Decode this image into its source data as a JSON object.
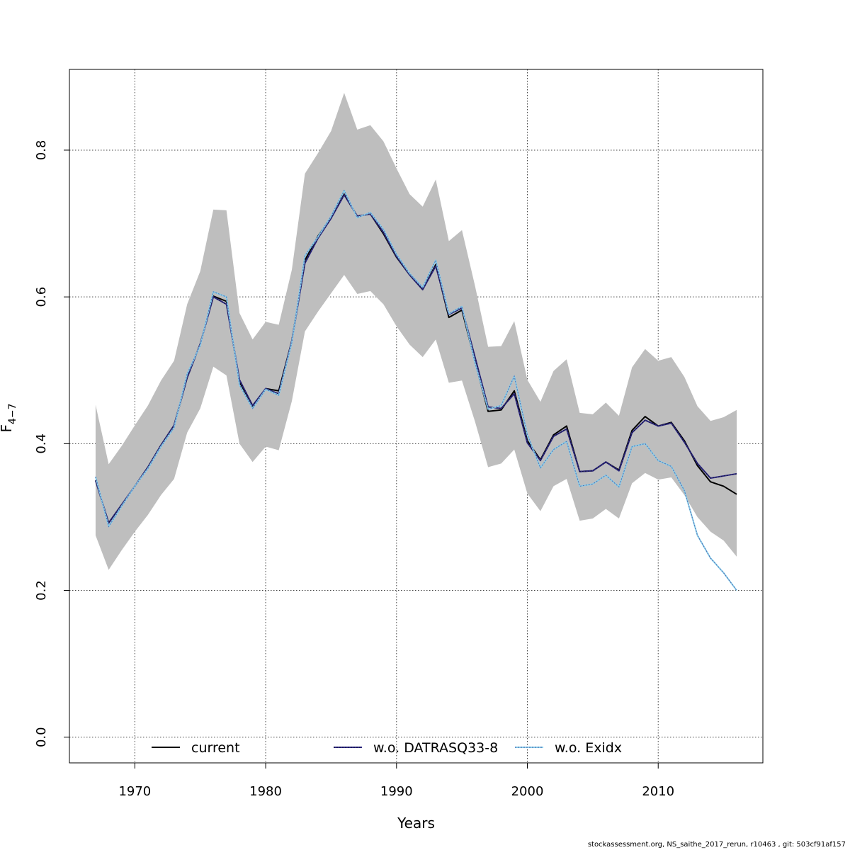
{
  "chart_data": {
    "type": "line",
    "xlabel": "Years",
    "ylabel_main": "F",
    "ylabel_sub": "4−7",
    "xlim": [
      1965,
      2018
    ],
    "ylim": [
      -0.035,
      0.91
    ],
    "xticks": [
      1970,
      1980,
      1990,
      2000,
      2010
    ],
    "yticks": [
      0.0,
      0.2,
      0.4,
      0.6,
      0.8
    ],
    "ytick_labels": [
      "0.0",
      "0.2",
      "0.4",
      "0.6",
      "0.8"
    ],
    "grid": true,
    "legend_position": "bottom",
    "x": [
      1967,
      1968,
      1969,
      1970,
      1971,
      1972,
      1973,
      1974,
      1975,
      1976,
      1977,
      1978,
      1979,
      1980,
      1981,
      1982,
      1983,
      1984,
      1985,
      1986,
      1987,
      1988,
      1989,
      1990,
      1991,
      1992,
      1993,
      1994,
      1995,
      1996,
      1997,
      1998,
      1999,
      2000,
      2001,
      2002,
      2003,
      2004,
      2005,
      2006,
      2007,
      2008,
      2009,
      2010,
      2011,
      2012,
      2013,
      2014,
      2015,
      2016
    ],
    "band": {
      "color": "#bebebe",
      "lower": [
        0.275,
        0.228,
        0.255,
        0.28,
        0.303,
        0.33,
        0.352,
        0.415,
        0.448,
        0.505,
        0.493,
        0.4,
        0.375,
        0.396,
        0.391,
        0.458,
        0.553,
        0.58,
        0.605,
        0.63,
        0.604,
        0.608,
        0.59,
        0.56,
        0.535,
        0.518,
        0.542,
        0.483,
        0.486,
        0.43,
        0.368,
        0.373,
        0.392,
        0.332,
        0.308,
        0.342,
        0.352,
        0.295,
        0.298,
        0.311,
        0.298,
        0.346,
        0.36,
        0.351,
        0.354,
        0.33,
        0.3,
        0.28,
        0.268,
        0.246
      ],
      "upper": [
        0.453,
        0.372,
        0.397,
        0.425,
        0.452,
        0.486,
        0.513,
        0.59,
        0.635,
        0.719,
        0.718,
        0.578,
        0.542,
        0.566,
        0.562,
        0.637,
        0.768,
        0.796,
        0.826,
        0.878,
        0.828,
        0.834,
        0.812,
        0.775,
        0.74,
        0.723,
        0.76,
        0.676,
        0.691,
        0.615,
        0.532,
        0.533,
        0.567,
        0.487,
        0.457,
        0.499,
        0.515,
        0.442,
        0.44,
        0.456,
        0.438,
        0.504,
        0.529,
        0.513,
        0.518,
        0.491,
        0.451,
        0.431,
        0.436,
        0.446
      ]
    },
    "series": [
      {
        "name": "current",
        "color": "#000000",
        "dash": "solid",
        "values": [
          0.35,
          0.292,
          0.317,
          0.342,
          0.368,
          0.398,
          0.425,
          0.49,
          0.536,
          0.601,
          0.594,
          0.484,
          0.451,
          0.475,
          0.472,
          0.54,
          0.65,
          0.683,
          0.708,
          0.74,
          0.71,
          0.713,
          0.686,
          0.654,
          0.63,
          0.61,
          0.644,
          0.572,
          0.582,
          0.512,
          0.444,
          0.446,
          0.472,
          0.404,
          0.378,
          0.412,
          0.424,
          0.362,
          0.363,
          0.375,
          0.364,
          0.418,
          0.437,
          0.424,
          0.429,
          0.404,
          0.37,
          0.348,
          0.342,
          0.331
        ]
      },
      {
        "name": "w.o. DATRASQ33-8",
        "color": "#2e2a87",
        "dash": "dotted",
        "values": [
          0.35,
          0.292,
          0.317,
          0.342,
          0.368,
          0.398,
          0.425,
          0.49,
          0.536,
          0.6,
          0.59,
          0.487,
          0.452,
          0.475,
          0.468,
          0.54,
          0.646,
          0.68,
          0.707,
          0.739,
          0.71,
          0.713,
          0.688,
          0.655,
          0.63,
          0.61,
          0.642,
          0.576,
          0.585,
          0.518,
          0.45,
          0.448,
          0.468,
          0.401,
          0.377,
          0.41,
          0.42,
          0.362,
          0.363,
          0.375,
          0.363,
          0.415,
          0.432,
          0.424,
          0.428,
          0.402,
          0.373,
          0.353,
          0.356,
          0.359
        ]
      },
      {
        "name": "w.o. Exidx",
        "color": "#87ceeb",
        "dash": "dotted",
        "values": [
          0.355,
          0.287,
          0.315,
          0.342,
          0.366,
          0.396,
          0.422,
          0.495,
          0.534,
          0.607,
          0.6,
          0.48,
          0.448,
          0.474,
          0.466,
          0.538,
          0.656,
          0.682,
          0.71,
          0.745,
          0.708,
          0.715,
          0.692,
          0.658,
          0.632,
          0.613,
          0.65,
          0.577,
          0.587,
          0.51,
          0.447,
          0.452,
          0.492,
          0.412,
          0.367,
          0.392,
          0.403,
          0.342,
          0.345,
          0.357,
          0.341,
          0.396,
          0.4,
          0.377,
          0.369,
          0.336,
          0.275,
          0.244,
          0.224,
          0.2
        ]
      }
    ]
  },
  "footer": "stockassessment.org, NS_saithe_2017_rerun, r10463 , git: 503cf91af157"
}
